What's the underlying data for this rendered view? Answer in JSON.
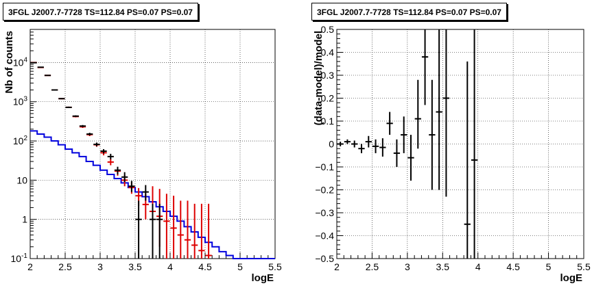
{
  "panels": [
    {
      "title": "3FGL J2007.7-7728 TS=112.84 PS=0.07 PS=0.07",
      "xlabel": "logE",
      "ylabel": "Nb of counts"
    },
    {
      "title": "3FGL J2007.7-7728 TS=112.84 PS=0.07 PS=0.07",
      "xlabel": "logE",
      "ylabel": "(data-model)/model"
    }
  ],
  "colors": {
    "data": "#000000",
    "model": "#dd0000",
    "component": "#0000dd",
    "grid": "#000000"
  },
  "chart_data": [
    {
      "type": "scatter",
      "title": "3FGL J2007.7-7728 TS=112.84 PS=0.07 PS=0.07",
      "xlabel": "logE",
      "ylabel": "Nb of counts",
      "xlim": [
        2,
        5.5
      ],
      "ylim": [
        0.1,
        70000
      ],
      "yscale": "log",
      "grid": true,
      "xticks": [
        "2",
        "2.5",
        "3",
        "3.5",
        "4",
        "4.5",
        "5",
        "5.5"
      ],
      "yticks": [
        "10^{-1}",
        "1",
        "10",
        "10^{2}",
        "10^{3}",
        "10^{4}"
      ],
      "bin_width": 0.1,
      "series": [
        {
          "role": "counts",
          "color": "#000000",
          "style": "errorbars",
          "points": [
            {
              "x": 2.05,
              "y": 9900,
              "lo": 9800,
              "hi": 10000
            },
            {
              "x": 2.15,
              "y": 7600,
              "lo": 7500,
              "hi": 7700
            },
            {
              "x": 2.25,
              "y": 4700,
              "lo": 4600,
              "hi": 4800
            },
            {
              "x": 2.35,
              "y": 2000,
              "lo": 1950,
              "hi": 2050
            },
            {
              "x": 2.45,
              "y": 1200,
              "lo": 1160,
              "hi": 1240
            },
            {
              "x": 2.55,
              "y": 720,
              "lo": 690,
              "hi": 750
            },
            {
              "x": 2.65,
              "y": 430,
              "lo": 410,
              "hi": 450
            },
            {
              "x": 2.75,
              "y": 240,
              "lo": 225,
              "hi": 255
            },
            {
              "x": 2.85,
              "y": 150,
              "lo": 138,
              "hi": 162
            },
            {
              "x": 2.95,
              "y": 82,
              "lo": 73,
              "hi": 91
            },
            {
              "x": 3.05,
              "y": 55,
              "lo": 48,
              "hi": 62
            },
            {
              "x": 3.15,
              "y": 40,
              "lo": 34,
              "hi": 47
            },
            {
              "x": 3.25,
              "y": 18,
              "lo": 14,
              "hi": 22
            },
            {
              "x": 3.35,
              "y": 12,
              "lo": 9,
              "hi": 16
            },
            {
              "x": 3.45,
              "y": 7,
              "lo": 5,
              "hi": 9.6
            },
            {
              "x": 3.55,
              "y": 1,
              "lo": 0.1,
              "hi": 3
            },
            {
              "x": 3.65,
              "y": 5,
              "lo": 3,
              "hi": 7.5
            },
            {
              "x": 3.75,
              "y": 1,
              "lo": 0.1,
              "hi": 2.5
            },
            {
              "x": 3.85,
              "y": 1,
              "lo": 0.1,
              "hi": 2.5
            }
          ]
        },
        {
          "role": "model",
          "color": "#dd0000",
          "style": "errorbars",
          "points": [
            {
              "x": 2.05,
              "y": 10000,
              "lo": 9900,
              "hi": 10100
            },
            {
              "x": 2.15,
              "y": 7500,
              "lo": 7400,
              "hi": 7600
            },
            {
              "x": 2.25,
              "y": 4700,
              "lo": 4600,
              "hi": 4800
            },
            {
              "x": 2.35,
              "y": 2000,
              "lo": 1950,
              "hi": 2050
            },
            {
              "x": 2.45,
              "y": 1200,
              "lo": 1160,
              "hi": 1240
            },
            {
              "x": 2.55,
              "y": 720,
              "lo": 690,
              "hi": 750
            },
            {
              "x": 2.65,
              "y": 420,
              "lo": 400,
              "hi": 440
            },
            {
              "x": 2.75,
              "y": 230,
              "lo": 215,
              "hi": 245
            },
            {
              "x": 2.85,
              "y": 145,
              "lo": 133,
              "hi": 157
            },
            {
              "x": 2.95,
              "y": 80,
              "lo": 71,
              "hi": 89
            },
            {
              "x": 3.05,
              "y": 50,
              "lo": 43,
              "hi": 57
            },
            {
              "x": 3.15,
              "y": 29,
              "lo": 24,
              "hi": 35
            },
            {
              "x": 3.25,
              "y": 17,
              "lo": 13,
              "hi": 21
            },
            {
              "x": 3.35,
              "y": 10,
              "lo": 7,
              "hi": 13.5
            },
            {
              "x": 3.45,
              "y": 6.5,
              "lo": 4.5,
              "hi": 9
            },
            {
              "x": 3.55,
              "y": 4,
              "lo": 2.2,
              "hi": 6.3
            },
            {
              "x": 3.65,
              "y": 2.4,
              "lo": 1,
              "hi": 4.5
            },
            {
              "x": 3.75,
              "y": 1.6,
              "lo": 0.3,
              "hi": 7
            },
            {
              "x": 3.85,
              "y": 1.2,
              "lo": 0.2,
              "hi": 6
            },
            {
              "x": 3.95,
              "y": 0.9,
              "lo": 0.1,
              "hi": 4.5
            },
            {
              "x": 4.05,
              "y": 0.6,
              "lo": 0.1,
              "hi": 4
            },
            {
              "x": 4.15,
              "y": 0.4,
              "lo": 0.1,
              "hi": 3
            },
            {
              "x": 4.25,
              "y": 0.3,
              "lo": 0.1,
              "hi": 3
            },
            {
              "x": 4.35,
              "y": 0.22,
              "lo": 0.1,
              "hi": 2.5
            },
            {
              "x": 4.45,
              "y": 0.16,
              "lo": 0.1,
              "hi": 2.5
            },
            {
              "x": 4.55,
              "y": 0.12,
              "lo": 0.1,
              "hi": 2.5
            }
          ]
        },
        {
          "role": "component",
          "color": "#0000dd",
          "style": "step",
          "edges": [
            2.0,
            2.1,
            2.2,
            2.3,
            2.4,
            2.5,
            2.6,
            2.7,
            2.8,
            2.9,
            3.0,
            3.1,
            3.2,
            3.3,
            3.4,
            3.5,
            3.6,
            3.7,
            3.8,
            3.9,
            4.0,
            4.1,
            4.2,
            4.3,
            4.4,
            4.5,
            4.6,
            4.7,
            4.8,
            4.9,
            5.0,
            5.1,
            5.2,
            5.3,
            5.4,
            5.5
          ],
          "values": [
            180,
            150,
            125,
            100,
            80,
            62,
            50,
            40,
            30,
            24,
            18,
            14,
            11,
            8.5,
            6.5,
            5,
            3.8,
            2.8,
            2.1,
            1.6,
            1.2,
            0.9,
            0.65,
            0.48,
            0.35,
            0.26,
            0.2,
            0.15,
            0.12,
            0.1,
            0.1,
            0.1,
            0.1,
            0.1,
            0.1
          ]
        }
      ]
    },
    {
      "type": "scatter",
      "title": "3FGL J2007.7-7728 TS=112.84 PS=0.07 PS=0.07",
      "xlabel": "logE",
      "ylabel": "(data-model)/model",
      "xlim": [
        2,
        5.5
      ],
      "ylim": [
        -0.5,
        0.5
      ],
      "grid": true,
      "xticks": [
        "2",
        "2.5",
        "3",
        "3.5",
        "4",
        "4.5",
        "5",
        "5.5"
      ],
      "yticks": [
        "−0.5",
        "−0.4",
        "−0.3",
        "−0.2",
        "−0.1",
        "0",
        "0.1",
        "0.2",
        "0.3",
        "0.4",
        "0.5"
      ],
      "bin_width": 0.1,
      "series": [
        {
          "role": "residuals",
          "color": "#000000",
          "style": "errorbars",
          "points": [
            {
              "x": 2.05,
              "y": 0.0,
              "lo": -0.01,
              "hi": 0.01
            },
            {
              "x": 2.15,
              "y": 0.01,
              "lo": 0.0,
              "hi": 0.02
            },
            {
              "x": 2.25,
              "y": 0.0,
              "lo": -0.015,
              "hi": 0.015
            },
            {
              "x": 2.35,
              "y": -0.02,
              "lo": -0.04,
              "hi": 0.0
            },
            {
              "x": 2.45,
              "y": 0.01,
              "lo": -0.015,
              "hi": 0.035
            },
            {
              "x": 2.55,
              "y": -0.01,
              "lo": -0.04,
              "hi": 0.02
            },
            {
              "x": 2.65,
              "y": -0.015,
              "lo": -0.055,
              "hi": 0.025
            },
            {
              "x": 2.75,
              "y": 0.09,
              "lo": 0.04,
              "hi": 0.14
            },
            {
              "x": 2.85,
              "y": -0.04,
              "lo": -0.1,
              "hi": 0.02
            },
            {
              "x": 2.95,
              "y": 0.04,
              "lo": -0.04,
              "hi": 0.12
            },
            {
              "x": 3.05,
              "y": -0.06,
              "lo": -0.16,
              "hi": 0.04
            },
            {
              "x": 3.15,
              "y": 0.11,
              "lo": -0.02,
              "hi": 0.28
            },
            {
              "x": 3.25,
              "y": 0.38,
              "lo": 0.17,
              "hi": 0.5
            },
            {
              "x": 3.35,
              "y": 0.04,
              "lo": -0.2,
              "hi": 0.28
            },
            {
              "x": 3.45,
              "y": 0.14,
              "lo": -0.2,
              "hi": 0.5
            },
            {
              "x": 3.55,
              "y": 0.2,
              "lo": -0.23,
              "hi": 0.5
            },
            {
              "x": 3.85,
              "y": -0.35,
              "lo": -0.5,
              "hi": 0.36
            },
            {
              "x": 3.95,
              "y": -0.07,
              "lo": -0.5,
              "hi": 0.5
            }
          ]
        }
      ]
    }
  ]
}
